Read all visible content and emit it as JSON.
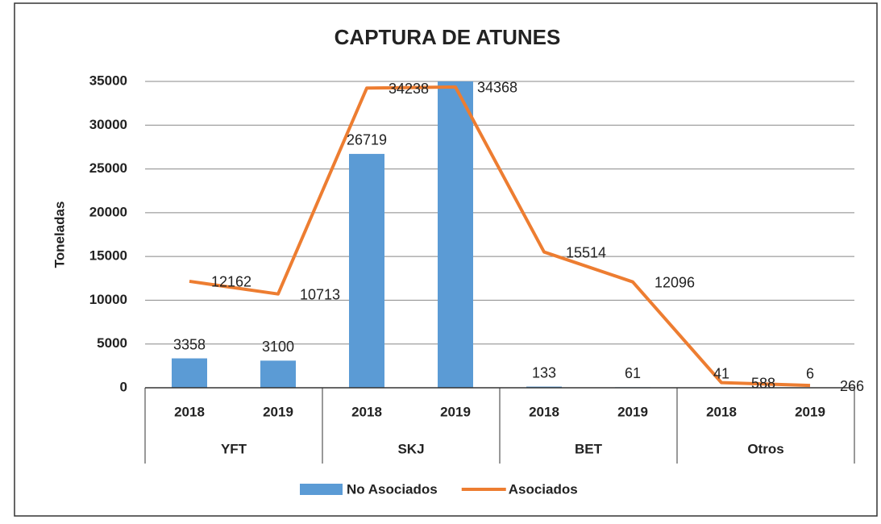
{
  "chart_data": {
    "type": "bar",
    "title": "CAPTURA DE ATUNES",
    "y_label": "Toneladas",
    "categories": [
      "2018",
      "2019",
      "2018",
      "2019",
      "2018",
      "2019",
      "2018",
      "2019"
    ],
    "groups": [
      "YFT",
      "SKJ",
      "BET",
      "Otros"
    ],
    "series": [
      {
        "name": "No Asociados",
        "type": "bar",
        "color": "#5b9bd5",
        "values": [
          3358,
          3100,
          26719,
          36000,
          133,
          61,
          41,
          6
        ]
      },
      {
        "name": "Asociados",
        "type": "line",
        "color": "#ed7d31",
        "values": [
          12162,
          10713,
          34238,
          34368,
          15514,
          12096,
          588,
          266
        ]
      }
    ],
    "ylim": [
      0,
      35000
    ],
    "yticks": [
      0,
      5000,
      10000,
      15000,
      20000,
      25000,
      30000,
      35000
    ],
    "grid": true,
    "legend": "bottom"
  }
}
